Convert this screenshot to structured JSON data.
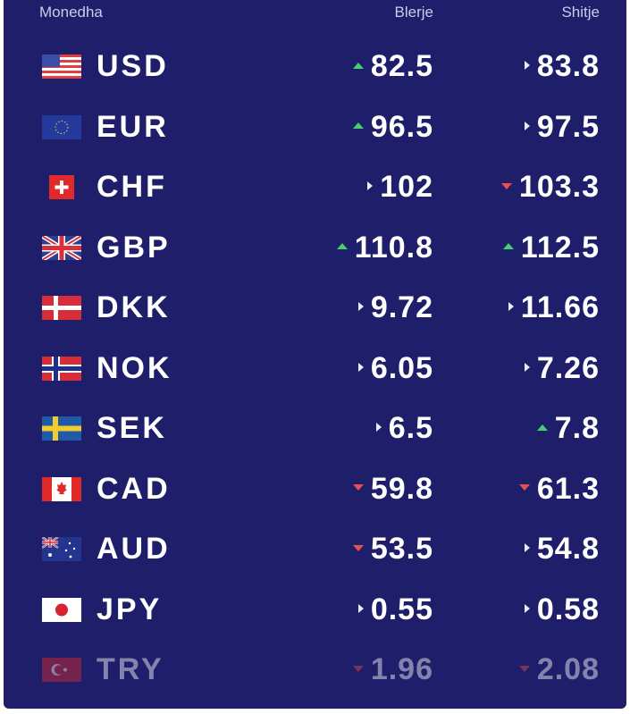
{
  "header": {
    "currency": "Monedha",
    "buy": "Blerje",
    "sell": "Shitje"
  },
  "rows": [
    {
      "code": "USD",
      "flag": "us-flag-icon",
      "buy": "82.5",
      "buy_trend": "up",
      "sell": "83.8",
      "sell_trend": "flat"
    },
    {
      "code": "EUR",
      "flag": "eu-flag-icon",
      "buy": "96.5",
      "buy_trend": "up",
      "sell": "97.5",
      "sell_trend": "flat"
    },
    {
      "code": "CHF",
      "flag": "ch-flag-icon",
      "buy": "102",
      "buy_trend": "flat",
      "sell": "103.3",
      "sell_trend": "down"
    },
    {
      "code": "GBP",
      "flag": "gb-flag-icon",
      "buy": "110.8",
      "buy_trend": "up",
      "sell": "112.5",
      "sell_trend": "up"
    },
    {
      "code": "DKK",
      "flag": "dk-flag-icon",
      "buy": "9.72",
      "buy_trend": "flat",
      "sell": "11.66",
      "sell_trend": "flat"
    },
    {
      "code": "NOK",
      "flag": "no-flag-icon",
      "buy": "6.05",
      "buy_trend": "flat",
      "sell": "7.26",
      "sell_trend": "flat"
    },
    {
      "code": "SEK",
      "flag": "se-flag-icon",
      "buy": "6.5",
      "buy_trend": "flat",
      "sell": "7.8",
      "sell_trend": "up"
    },
    {
      "code": "CAD",
      "flag": "ca-flag-icon",
      "buy": "59.8",
      "buy_trend": "down",
      "sell": "61.3",
      "sell_trend": "down"
    },
    {
      "code": "AUD",
      "flag": "au-flag-icon",
      "buy": "53.5",
      "buy_trend": "down",
      "sell": "54.8",
      "sell_trend": "flat"
    },
    {
      "code": "JPY",
      "flag": "jp-flag-icon",
      "buy": "0.55",
      "buy_trend": "flat",
      "sell": "0.58",
      "sell_trend": "flat"
    },
    {
      "code": "TRY",
      "flag": "tr-flag-icon",
      "buy": "1.96",
      "buy_trend": "down",
      "sell": "2.08",
      "sell_trend": "down"
    }
  ],
  "colors": {
    "background": "#1e1e6b",
    "up": "#44d06a",
    "down": "#e8504e",
    "text": "#ffffff",
    "header": "#c9ccea"
  }
}
